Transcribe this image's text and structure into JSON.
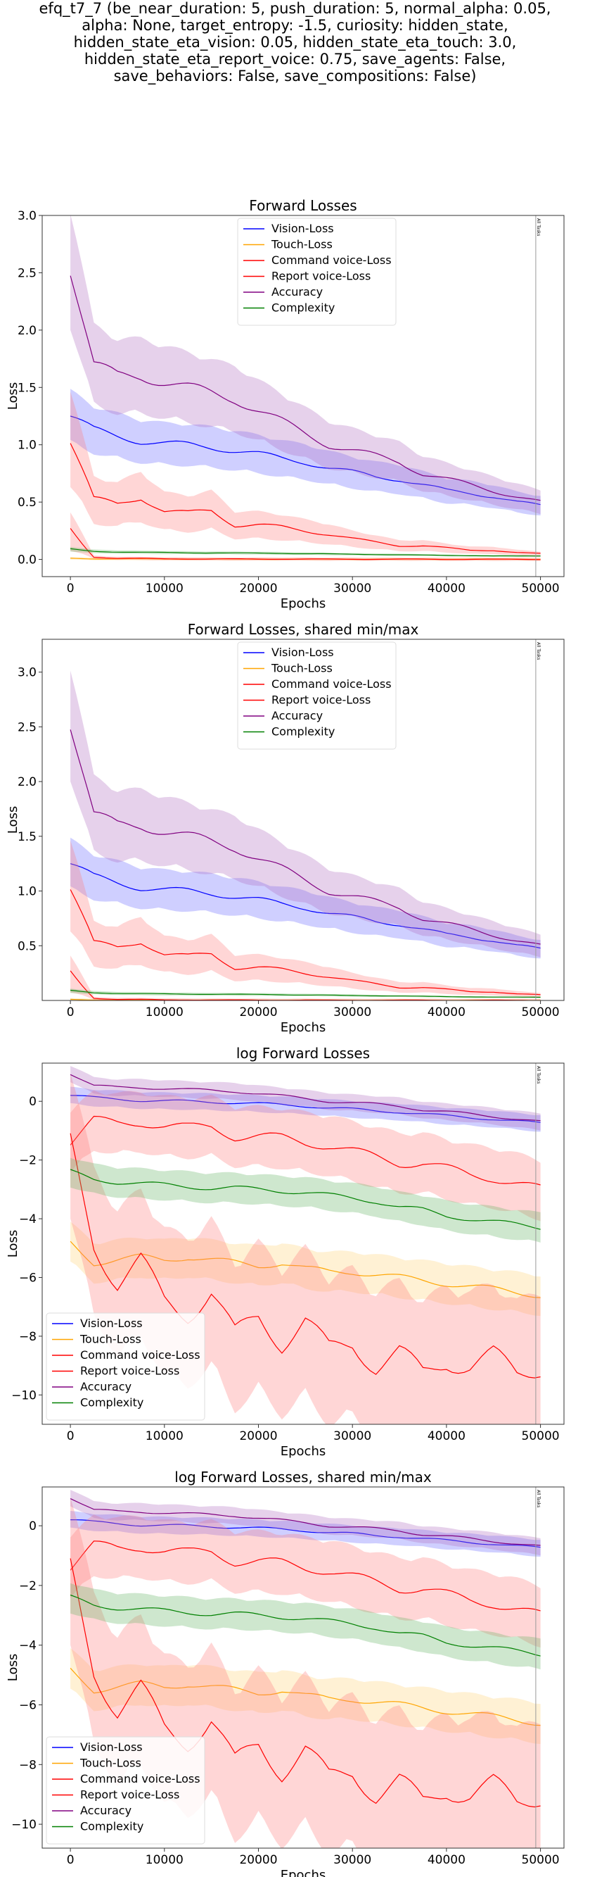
{
  "suptitle": [
    "efq_t7_7 (be_near_duration: 5, push_duration: 5, normal_alpha: 0.05,",
    "alpha: None, target_entropy: -1.5, curiosity: hidden_state,",
    "hidden_state_eta_vision: 0.05, hidden_state_eta_touch: 3.0,",
    "hidden_state_eta_report_voice: 0.75, save_agents: False,",
    "save_behaviors: False, save_compositions: False)"
  ],
  "vline_label": "All Tasks",
  "chart_data": [
    {
      "type": "line",
      "title": "Forward Losses",
      "xlabel": "Epochs",
      "ylabel": "Loss",
      "xlim": [
        -3000,
        52500
      ],
      "ylim": [
        -0.15,
        3.0
      ],
      "xticks": [
        0,
        10000,
        20000,
        30000,
        40000,
        50000
      ],
      "yticks": [
        0.0,
        0.5,
        1.0,
        1.5,
        2.0,
        2.5,
        3.0
      ],
      "ytick_labels": [
        "0.0",
        "0.5",
        "1.0",
        "1.5",
        "2.0",
        "2.5",
        "3.0"
      ],
      "vline_x": 49500,
      "legend": "top-center",
      "series_set": "linear"
    },
    {
      "type": "line",
      "title": "Forward Losses, shared min/max",
      "xlabel": "Epochs",
      "ylabel": "Loss",
      "xlim": [
        -3000,
        52500
      ],
      "ylim": [
        0.0,
        3.3
      ],
      "xticks": [
        0,
        10000,
        20000,
        30000,
        40000,
        50000
      ],
      "yticks": [
        0.5,
        1.0,
        1.5,
        2.0,
        2.5,
        3.0
      ],
      "ytick_labels": [
        "0.5",
        "1.0",
        "1.5",
        "2.0",
        "2.5",
        "3.0"
      ],
      "vline_x": 49500,
      "legend": "top-center",
      "series_set": "linear"
    },
    {
      "type": "line",
      "title": "log Forward Losses",
      "xlabel": "Epochs",
      "ylabel": "Loss",
      "xlim": [
        -3000,
        52500
      ],
      "ylim": [
        -11,
        1.3
      ],
      "xticks": [
        0,
        10000,
        20000,
        30000,
        40000,
        50000
      ],
      "yticks": [
        -10,
        -8,
        -6,
        -4,
        -2,
        0
      ],
      "ytick_labels": [
        "−10",
        "−8",
        "−6",
        "−4",
        "−2",
        "0"
      ],
      "vline_x": 49500,
      "legend": "lower-left",
      "series_set": "log"
    },
    {
      "type": "line",
      "title": "log Forward Losses, shared min/max",
      "xlabel": "Epochs",
      "ylabel": "Loss",
      "xlim": [
        -3000,
        52500
      ],
      "ylim": [
        -10.8,
        1.3
      ],
      "xticks": [
        0,
        10000,
        20000,
        30000,
        40000,
        50000
      ],
      "yticks": [
        -10,
        -8,
        -6,
        -4,
        -2,
        0
      ],
      "ytick_labels": [
        "−10",
        "−8",
        "−6",
        "−4",
        "−2",
        "0"
      ],
      "vline_x": 49500,
      "legend": "lower-left",
      "series_set": "log"
    }
  ],
  "series": [
    {
      "name": "Vision-Loss",
      "color": "#0000ff",
      "fill": "#6b6bff"
    },
    {
      "name": "Touch-Loss",
      "color": "#ffa500",
      "fill": "#ffd27a"
    },
    {
      "name": "Command voice-Loss",
      "color": "#ff0000",
      "fill": "#ff8080"
    },
    {
      "name": "Report voice-Loss",
      "color": "#ff0000",
      "fill": "#ff8080"
    },
    {
      "name": "Accuracy",
      "color": "#800080",
      "fill": "#b070c0"
    },
    {
      "name": "Complexity",
      "color": "#008000",
      "fill": "#66b366"
    }
  ],
  "series_values": {
    "x": [
      0,
      2500,
      5000,
      7500,
      10000,
      12500,
      15000,
      17500,
      20000,
      22500,
      25000,
      27500,
      30000,
      32500,
      35000,
      37500,
      40000,
      42500,
      45000,
      47500,
      50000
    ],
    "linear": {
      "Vision-Loss": [
        1.25,
        1.13,
        1.08,
        1.03,
        1.01,
        1.0,
        0.98,
        0.95,
        0.92,
        0.88,
        0.85,
        0.8,
        0.76,
        0.72,
        0.7,
        0.65,
        0.6,
        0.58,
        0.55,
        0.5,
        0.47
      ],
      "Touch-Loss": [
        0.01,
        0.005,
        0.004,
        0.004,
        0.003,
        0.003,
        0.003,
        0.002,
        0.002,
        0.002,
        0.002,
        0.002,
        0.002,
        0.002,
        0.002,
        0.002,
        0.002,
        0.002,
        0.002,
        0.002,
        0.002
      ],
      "Command voice-Loss": [
        1.05,
        0.52,
        0.48,
        0.55,
        0.42,
        0.4,
        0.43,
        0.3,
        0.3,
        0.28,
        0.25,
        0.22,
        0.18,
        0.15,
        0.12,
        0.12,
        0.1,
        0.08,
        0.08,
        0.06,
        0.05
      ],
      "Report voice-Loss": [
        0.25,
        0.02,
        0.01,
        0.01,
        0.005,
        0.005,
        0.004,
        0.004,
        0.003,
        0.003,
        0.003,
        0.002,
        0.002,
        0.002,
        0.002,
        0.002,
        0.001,
        0.001,
        0.001,
        0.001,
        0.001
      ],
      "Accuracy": [
        2.55,
        1.7,
        1.6,
        1.6,
        1.55,
        1.5,
        1.45,
        1.4,
        1.3,
        1.2,
        1.1,
        1.0,
        0.95,
        0.9,
        0.85,
        0.75,
        0.7,
        0.65,
        0.6,
        0.55,
        0.5
      ],
      "Complexity": [
        0.09,
        0.07,
        0.065,
        0.062,
        0.06,
        0.058,
        0.057,
        0.056,
        0.055,
        0.053,
        0.05,
        0.048,
        0.045,
        0.043,
        0.04,
        0.038,
        0.035,
        0.033,
        0.03,
        0.03,
        0.03
      ]
    },
    "log": {
      "Vision-Loss": [
        0.2,
        0.12,
        0.08,
        0.03,
        0.01,
        0.0,
        -0.02,
        -0.05,
        -0.08,
        -0.12,
        -0.16,
        -0.22,
        -0.27,
        -0.33,
        -0.36,
        -0.43,
        -0.5,
        -0.55,
        -0.6,
        -0.68,
        -0.75
      ],
      "Touch-Loss": [
        -4.8,
        -5.5,
        -5.4,
        -5.3,
        -5.4,
        -5.3,
        -5.4,
        -5.5,
        -5.6,
        -5.5,
        -5.7,
        -5.8,
        -5.8,
        -5.9,
        -6.0,
        -6.1,
        -6.2,
        -6.3,
        -6.4,
        -6.5,
        -6.6
      ],
      "Command voice-Loss": [
        -1.4,
        -0.65,
        -0.75,
        -0.7,
        -0.85,
        -0.9,
        -0.85,
        -1.2,
        -1.2,
        -1.25,
        -1.4,
        -1.5,
        -1.7,
        -1.9,
        -2.1,
        -2.1,
        -2.3,
        -2.5,
        -2.6,
        -2.8,
        -3.0
      ],
      "Report voice-Loss": [
        -1.4,
        -4.8,
        -6.2,
        -5.5,
        -6.8,
        -7.2,
        -6.5,
        -8.0,
        -7.3,
        -8.2,
        -7.5,
        -8.5,
        -8.2,
        -9.0,
        -8.6,
        -9.3,
        -8.8,
        -9.0,
        -8.7,
        -9.3,
        -9.0
      ],
      "Accuracy": [
        0.95,
        0.53,
        0.47,
        0.47,
        0.44,
        0.4,
        0.37,
        0.34,
        0.26,
        0.18,
        0.1,
        0.0,
        -0.05,
        -0.1,
        -0.16,
        -0.29,
        -0.36,
        -0.43,
        -0.51,
        -0.6,
        -0.7
      ],
      "Complexity": [
        -2.4,
        -2.65,
        -2.75,
        -2.8,
        -2.85,
        -2.9,
        -2.95,
        -2.95,
        -3.0,
        -3.05,
        -3.1,
        -3.2,
        -3.3,
        -3.4,
        -3.6,
        -3.7,
        -3.9,
        -4.0,
        -4.1,
        -4.2,
        -4.3
      ]
    }
  }
}
